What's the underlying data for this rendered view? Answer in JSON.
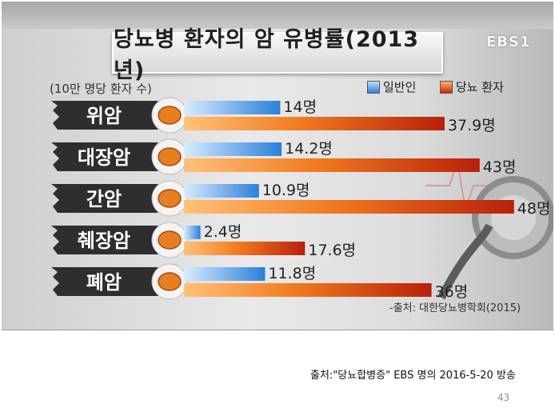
{
  "chart_data": {
    "type": "bar",
    "title": "당뇨병 환자의 암 유병률(2013년)",
    "unit_label": "(10만 명당 환자 수)",
    "categories": [
      "위암",
      "대장암",
      "간암",
      "췌장암",
      "폐암"
    ],
    "series": [
      {
        "name": "일반인",
        "values": [
          14,
          14.2,
          10.9,
          2.4,
          11.8
        ],
        "labels": [
          "14명",
          "14.2명",
          "10.9명",
          "2.4명",
          "11.8명"
        ],
        "color": "#2d7fd8"
      },
      {
        "name": "당뇨 환자",
        "values": [
          37.9,
          43,
          48,
          17.6,
          36
        ],
        "labels": [
          "37.9명",
          "43명",
          "48명",
          "17.6명",
          "36명"
        ],
        "color": "#c8290d"
      }
    ],
    "legend_position": "top-right",
    "source_note": "-출처: 대한당뇨병학회(2015)"
  },
  "logo": "EBS1",
  "caption": "출처:\"당뇨합병증\" EBS 명의 2016-5-20 방송",
  "page_number": "43",
  "colors": {
    "general_bar": "#2d7fd8",
    "diabetic_bar": "#c8290d",
    "tag": "#2e2e2e"
  }
}
